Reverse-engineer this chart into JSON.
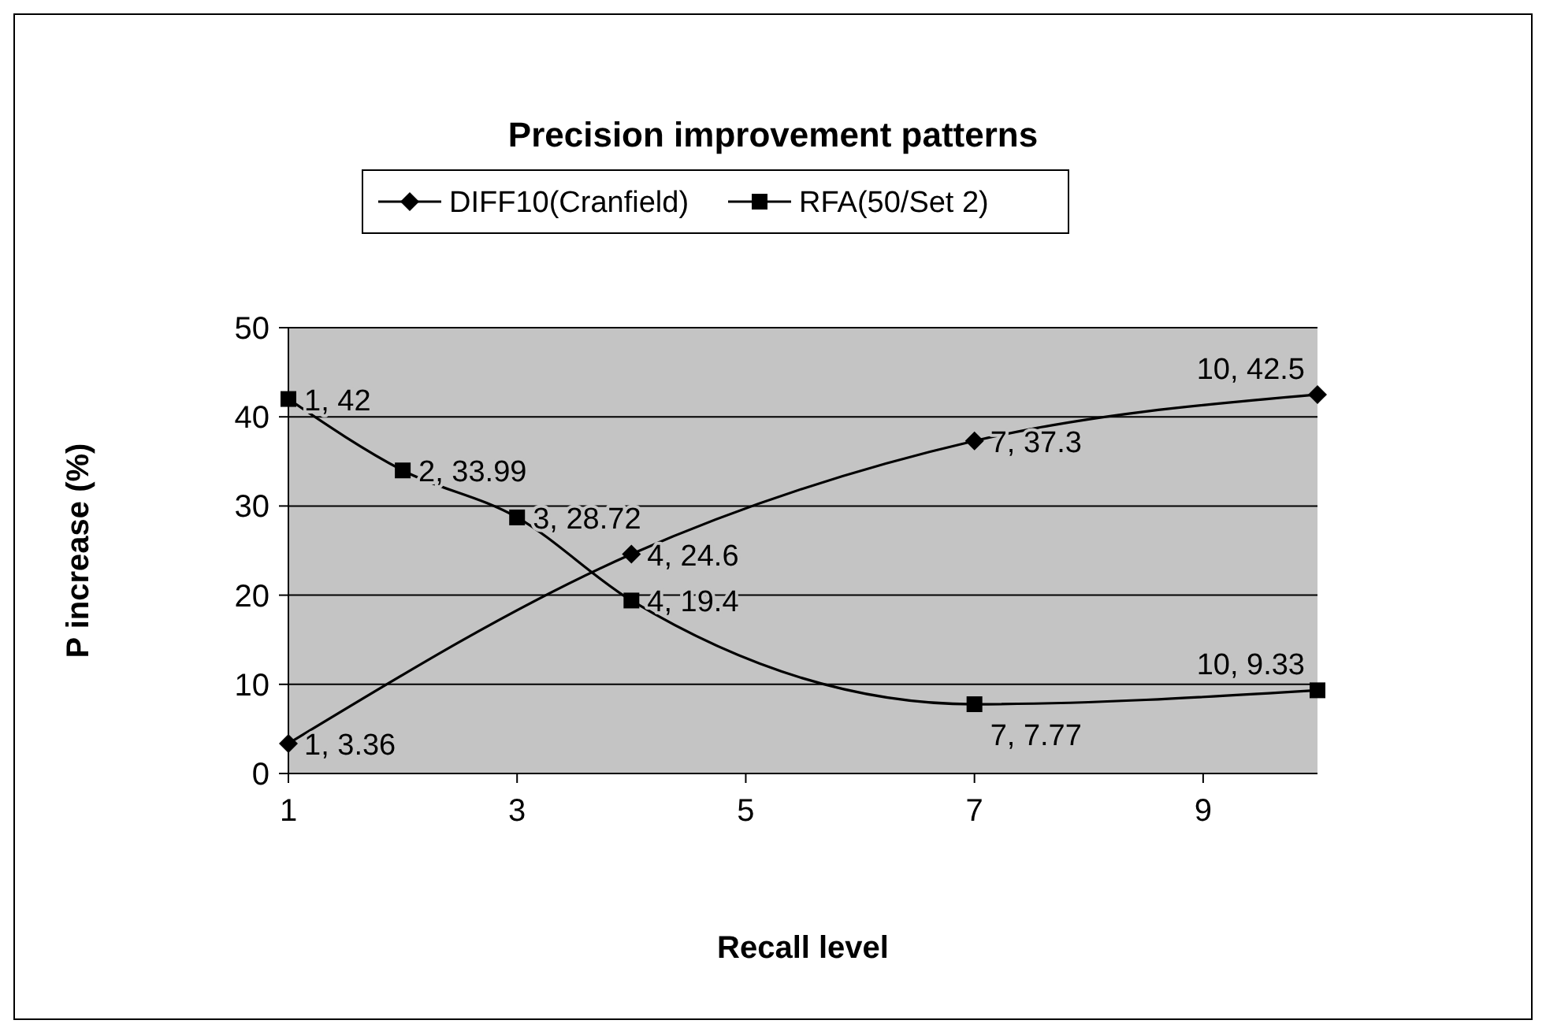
{
  "chart_data": {
    "type": "line",
    "title": "Precision improvement patterns",
    "xlabel": "Recall level",
    "ylabel": "P increase (%)",
    "xlim": [
      1,
      10
    ],
    "xticks": [
      1,
      3,
      5,
      7,
      9
    ],
    "ylim": [
      0,
      50
    ],
    "yticks": [
      0,
      10,
      20,
      30,
      40,
      50
    ],
    "grid": "y",
    "legend": "top",
    "series": [
      {
        "name": "DIFF10(Cranfield)",
        "color": "#000000",
        "marker": "diamond",
        "x": [
          1,
          4,
          7,
          10
        ],
        "values": [
          3.36,
          24.6,
          37.3,
          42.5
        ],
        "value_labels": [
          "1, 3.36",
          "4, 24.6",
          "7, 37.3",
          "10, 42.5"
        ]
      },
      {
        "name": "RFA(50/Set 2)",
        "color": "#000000",
        "marker": "square",
        "x": [
          1,
          2,
          3,
          4,
          7,
          10
        ],
        "values": [
          42,
          33.99,
          28.72,
          19.4,
          7.77,
          9.33
        ],
        "value_labels": [
          "1, 42",
          "2, 33.99",
          "3, 28.72",
          "4, 19.4",
          "7, 7.77",
          "10, 9.33"
        ]
      }
    ]
  }
}
